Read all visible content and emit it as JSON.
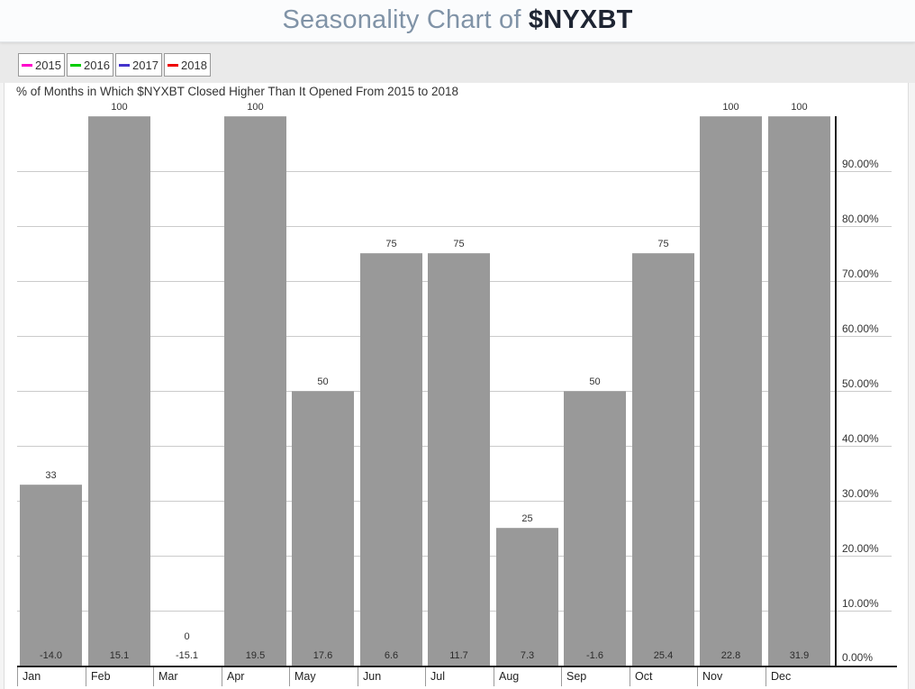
{
  "header": {
    "title_prefix": "Seasonality Chart of ",
    "symbol": "$NYXBT"
  },
  "legend": {
    "items": [
      {
        "label": "2015",
        "color": "#ff00cc"
      },
      {
        "label": "2016",
        "color": "#00cc00"
      },
      {
        "label": "2017",
        "color": "#4433cc"
      },
      {
        "label": "2018",
        "color": "#ee0000"
      }
    ]
  },
  "chart_data": {
    "type": "bar",
    "title": "% of Months in Which $NYXBT Closed Higher Than It Opened From 2015 to 2018",
    "categories": [
      "Jan",
      "Feb",
      "Mar",
      "Apr",
      "May",
      "Jun",
      "Jul",
      "Aug",
      "Sep",
      "Oct",
      "Nov",
      "Dec"
    ],
    "values": [
      33,
      100,
      0,
      100,
      50,
      75,
      75,
      25,
      50,
      75,
      100,
      100
    ],
    "value_labels": [
      "33",
      "100",
      "0",
      "100",
      "50",
      "75",
      "75",
      "25",
      "50",
      "75",
      "100",
      "100"
    ],
    "avg_change_labels": [
      "-14.0",
      "15.1",
      "-15.1",
      "19.5",
      "17.6",
      "6.6",
      "11.7",
      "7.3",
      "-1.6",
      "25.4",
      "22.8",
      "31.9"
    ],
    "y_tick_labels": [
      "90.00%",
      "80.00%",
      "70.00%",
      "60.00%",
      "50.00%",
      "40.00%",
      "30.00%",
      "20.00%",
      "10.00%",
      "0.00%"
    ],
    "ylim": [
      0,
      100
    ],
    "grid": true,
    "bar_color": "#999999",
    "legend_position": "top-left",
    "y_axis_side": "right"
  }
}
